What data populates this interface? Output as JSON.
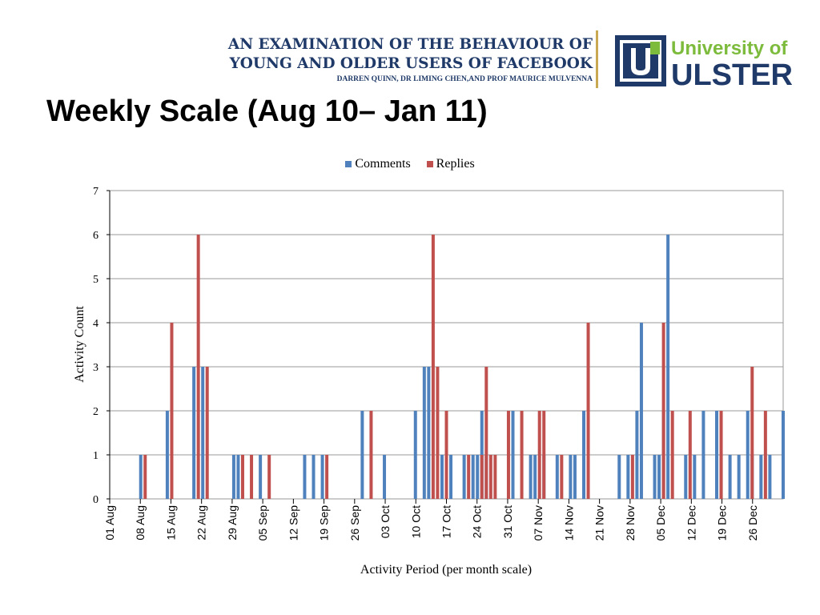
{
  "header": {
    "line1": "AN EXAMINATION OF THE BEHAVIOUR OF",
    "line2": "YOUNG AND OLDER USERS OF FACEBOOK",
    "authors": "DARREN QUINN, DR LIMING CHEN,AND PROF MAURICE MULVENNA"
  },
  "logo": {
    "line1": "University of",
    "line2": "ULSTER",
    "colors": {
      "navy": "#1f3a68",
      "green": "#7dbb3c"
    }
  },
  "slide_title": "Weekly Scale (Aug 10– Jan 11)",
  "chart_data": {
    "type": "bar",
    "title": "",
    "xlabel": "Activity Period (per month scale)",
    "ylabel": "Activity Count",
    "ylim": [
      0,
      7
    ],
    "yticks": [
      0,
      1,
      2,
      3,
      4,
      5,
      6,
      7
    ],
    "grid": true,
    "legend_position": "top-center",
    "x_tick_labels": [
      "01 Aug",
      "08 Aug",
      "15 Aug",
      "22 Aug",
      "29 Aug",
      "05 Sep",
      "12 Sep",
      "19 Sep",
      "26 Sep",
      "03 Oct",
      "10 Oct",
      "17 Oct",
      "24 Oct",
      "31 Oct",
      "07 Nov",
      "14 Nov",
      "21 Nov",
      "28 Nov",
      "05 Dec",
      "12 Dec",
      "19 Dec",
      "26 Dec"
    ],
    "x_range": [
      "2010-08-01",
      "2010-12-31"
    ],
    "series": [
      {
        "name": "Comments",
        "color": "#4f81bd",
        "points": [
          [
            "2010-08-08",
            1
          ],
          [
            "2010-08-14",
            2
          ],
          [
            "2010-08-20",
            3
          ],
          [
            "2010-08-22",
            3
          ],
          [
            "2010-08-29",
            1
          ],
          [
            "2010-08-30",
            1
          ],
          [
            "2010-09-04",
            1
          ],
          [
            "2010-09-14",
            1
          ],
          [
            "2010-09-16",
            1
          ],
          [
            "2010-09-18",
            1
          ],
          [
            "2010-09-27",
            2
          ],
          [
            "2010-10-02",
            1
          ],
          [
            "2010-10-09",
            2
          ],
          [
            "2010-10-11",
            3
          ],
          [
            "2010-10-12",
            3
          ],
          [
            "2010-10-15",
            1
          ],
          [
            "2010-10-17",
            1
          ],
          [
            "2010-10-20",
            1
          ],
          [
            "2010-10-22",
            1
          ],
          [
            "2010-10-23",
            1
          ],
          [
            "2010-10-24",
            2
          ],
          [
            "2010-10-25",
            1
          ],
          [
            "2010-10-31",
            2
          ],
          [
            "2010-11-04",
            1
          ],
          [
            "2010-11-05",
            1
          ],
          [
            "2010-11-07",
            1
          ],
          [
            "2010-11-10",
            1
          ],
          [
            "2010-11-13",
            1
          ],
          [
            "2010-11-14",
            1
          ],
          [
            "2010-11-16",
            2
          ],
          [
            "2010-11-24",
            1
          ],
          [
            "2010-11-26",
            1
          ],
          [
            "2010-11-28",
            2
          ],
          [
            "2010-11-29",
            4
          ],
          [
            "2010-12-02",
            1
          ],
          [
            "2010-12-03",
            1
          ],
          [
            "2010-12-04",
            2
          ],
          [
            "2010-12-05",
            6
          ],
          [
            "2010-12-09",
            1
          ],
          [
            "2010-12-11",
            1
          ],
          [
            "2010-12-13",
            2
          ],
          [
            "2010-12-16",
            2
          ],
          [
            "2010-12-17",
            1
          ],
          [
            "2010-12-19",
            1
          ],
          [
            "2010-12-21",
            1
          ],
          [
            "2010-12-23",
            2
          ],
          [
            "2010-12-24",
            1
          ],
          [
            "2010-12-26",
            1
          ],
          [
            "2010-12-28",
            1
          ],
          [
            "2010-12-31",
            2
          ]
        ]
      },
      {
        "name": "Replies",
        "color": "#c0504d",
        "points": [
          [
            "2010-08-09",
            1
          ],
          [
            "2010-08-15",
            4
          ],
          [
            "2010-08-21",
            6
          ],
          [
            "2010-08-23",
            3
          ],
          [
            "2010-08-31",
            1
          ],
          [
            "2010-09-02",
            1
          ],
          [
            "2010-09-06",
            1
          ],
          [
            "2010-09-19",
            1
          ],
          [
            "2010-09-29",
            2
          ],
          [
            "2010-10-13",
            6
          ],
          [
            "2010-10-14",
            3
          ],
          [
            "2010-10-16",
            2
          ],
          [
            "2010-10-21",
            1
          ],
          [
            "2010-10-24",
            1
          ],
          [
            "2010-10-25",
            3
          ],
          [
            "2010-10-26",
            1
          ],
          [
            "2010-10-27",
            1
          ],
          [
            "2010-10-30",
            2
          ],
          [
            "2010-11-02",
            2
          ],
          [
            "2010-11-06",
            2
          ],
          [
            "2010-11-07",
            2
          ],
          [
            "2010-11-11",
            1
          ],
          [
            "2010-11-17",
            4
          ],
          [
            "2010-11-27",
            1
          ],
          [
            "2010-12-04",
            4
          ],
          [
            "2010-12-06",
            2
          ],
          [
            "2010-12-10",
            2
          ],
          [
            "2010-12-17",
            2
          ],
          [
            "2010-12-24",
            3
          ],
          [
            "2010-12-27",
            2
          ]
        ]
      }
    ]
  }
}
